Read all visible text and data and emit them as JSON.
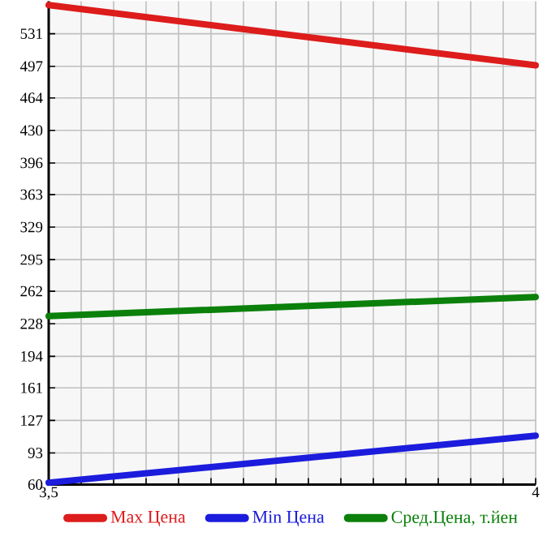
{
  "chart_data": {
    "type": "line",
    "x": [
      3.5,
      4
    ],
    "series": [
      {
        "name": "Max Цена",
        "color": "#dd1c1c",
        "values": [
          561,
          498
        ]
      },
      {
        "name": "Min Цена",
        "color": "#1c1cdd",
        "values": [
          62,
          111
        ]
      },
      {
        "name": "Сред.Цена, т.йен",
        "color": "#0b800b",
        "values": [
          236,
          256
        ]
      }
    ],
    "xlim": [
      3.5,
      4
    ],
    "xticks": [
      {
        "value": 3.5,
        "label": "3,5"
      },
      4
    ],
    "ylim": [
      60,
      565
    ],
    "yticks": [
      60,
      93,
      127,
      161,
      194,
      228,
      262,
      295,
      329,
      363,
      396,
      430,
      464,
      497,
      531
    ],
    "grid": true,
    "legend": "bottom",
    "marker": "none",
    "line_style": "solid"
  }
}
